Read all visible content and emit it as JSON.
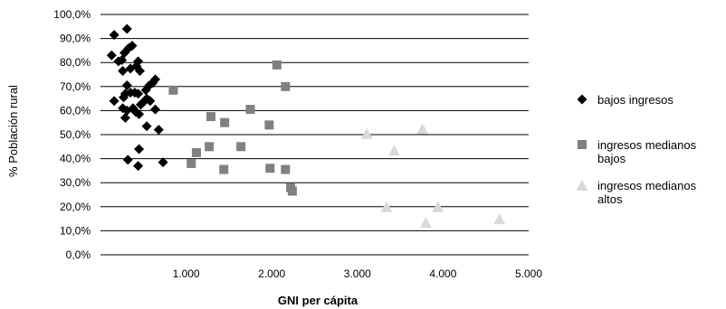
{
  "chart_data": {
    "type": "scatter",
    "xlabel": "GNI per cápita",
    "ylabel": "% Población rural",
    "xlim": [
      0,
      5000
    ],
    "ylim": [
      0,
      100
    ],
    "x_ticks": [
      1000,
      2000,
      3000,
      4000,
      5000
    ],
    "x_tick_labels": [
      "1.000",
      "2.000",
      "3.000",
      "4.000",
      "5.000"
    ],
    "y_ticks": [
      0,
      10,
      20,
      30,
      40,
      50,
      60,
      70,
      80,
      90,
      100
    ],
    "y_tick_labels": [
      "0,0%",
      "10,0%",
      "20,0%",
      "30,0%",
      "40,0%",
      "50,0%",
      "60,0%",
      "70,0%",
      "80,0%",
      "90,0%",
      "100,0%"
    ],
    "grid": "horizontal",
    "legend_position": "right",
    "series": [
      {
        "name": "bajos ingresos",
        "marker": "diamond",
        "color": "#000000",
        "points": [
          [
            160,
            91.5
          ],
          [
            310,
            94
          ],
          [
            130,
            83
          ],
          [
            210,
            80.5
          ],
          [
            250,
            81
          ],
          [
            280,
            84
          ],
          [
            330,
            86
          ],
          [
            370,
            87
          ],
          [
            420,
            78.5
          ],
          [
            440,
            80.5
          ],
          [
            350,
            77.5
          ],
          [
            460,
            76.5
          ],
          [
            260,
            76.5
          ],
          [
            310,
            70.5
          ],
          [
            290,
            67
          ],
          [
            350,
            67.5
          ],
          [
            400,
            67.5
          ],
          [
            440,
            67
          ],
          [
            530,
            68.5
          ],
          [
            570,
            70.5
          ],
          [
            610,
            71.5
          ],
          [
            640,
            73
          ],
          [
            160,
            64
          ],
          [
            270,
            65.5
          ],
          [
            500,
            63.5
          ],
          [
            540,
            65
          ],
          [
            580,
            64
          ],
          [
            260,
            61
          ],
          [
            310,
            60
          ],
          [
            380,
            61
          ],
          [
            410,
            59.5
          ],
          [
            450,
            58.5
          ],
          [
            470,
            62.5
          ],
          [
            290,
            57
          ],
          [
            640,
            60.5
          ],
          [
            540,
            53.5
          ],
          [
            680,
            52
          ],
          [
            450,
            44
          ],
          [
            320,
            39.5
          ],
          [
            440,
            37
          ],
          [
            730,
            38.5
          ]
        ]
      },
      {
        "name": "ingresos medianos bajos",
        "marker": "square",
        "color": "#808080",
        "points": [
          [
            850,
            68.5
          ],
          [
            2060,
            79
          ],
          [
            2160,
            70
          ],
          [
            1290,
            57.5
          ],
          [
            1450,
            55
          ],
          [
            1750,
            60.5
          ],
          [
            1970,
            54
          ],
          [
            1270,
            45
          ],
          [
            1120,
            42.5
          ],
          [
            1640,
            45
          ],
          [
            1060,
            38
          ],
          [
            1440,
            35.5
          ],
          [
            1980,
            36
          ],
          [
            2160,
            35.5
          ],
          [
            2220,
            28
          ],
          [
            2240,
            26.5
          ]
        ]
      },
      {
        "name": "ingresos medianos altos",
        "marker": "triangle",
        "color": "#d9d9d9",
        "points": [
          [
            3110,
            50.5
          ],
          [
            3430,
            43.5
          ],
          [
            3760,
            52.5
          ],
          [
            3340,
            20
          ],
          [
            3940,
            20
          ],
          [
            3800,
            13.5
          ],
          [
            4660,
            15
          ]
        ]
      }
    ]
  }
}
